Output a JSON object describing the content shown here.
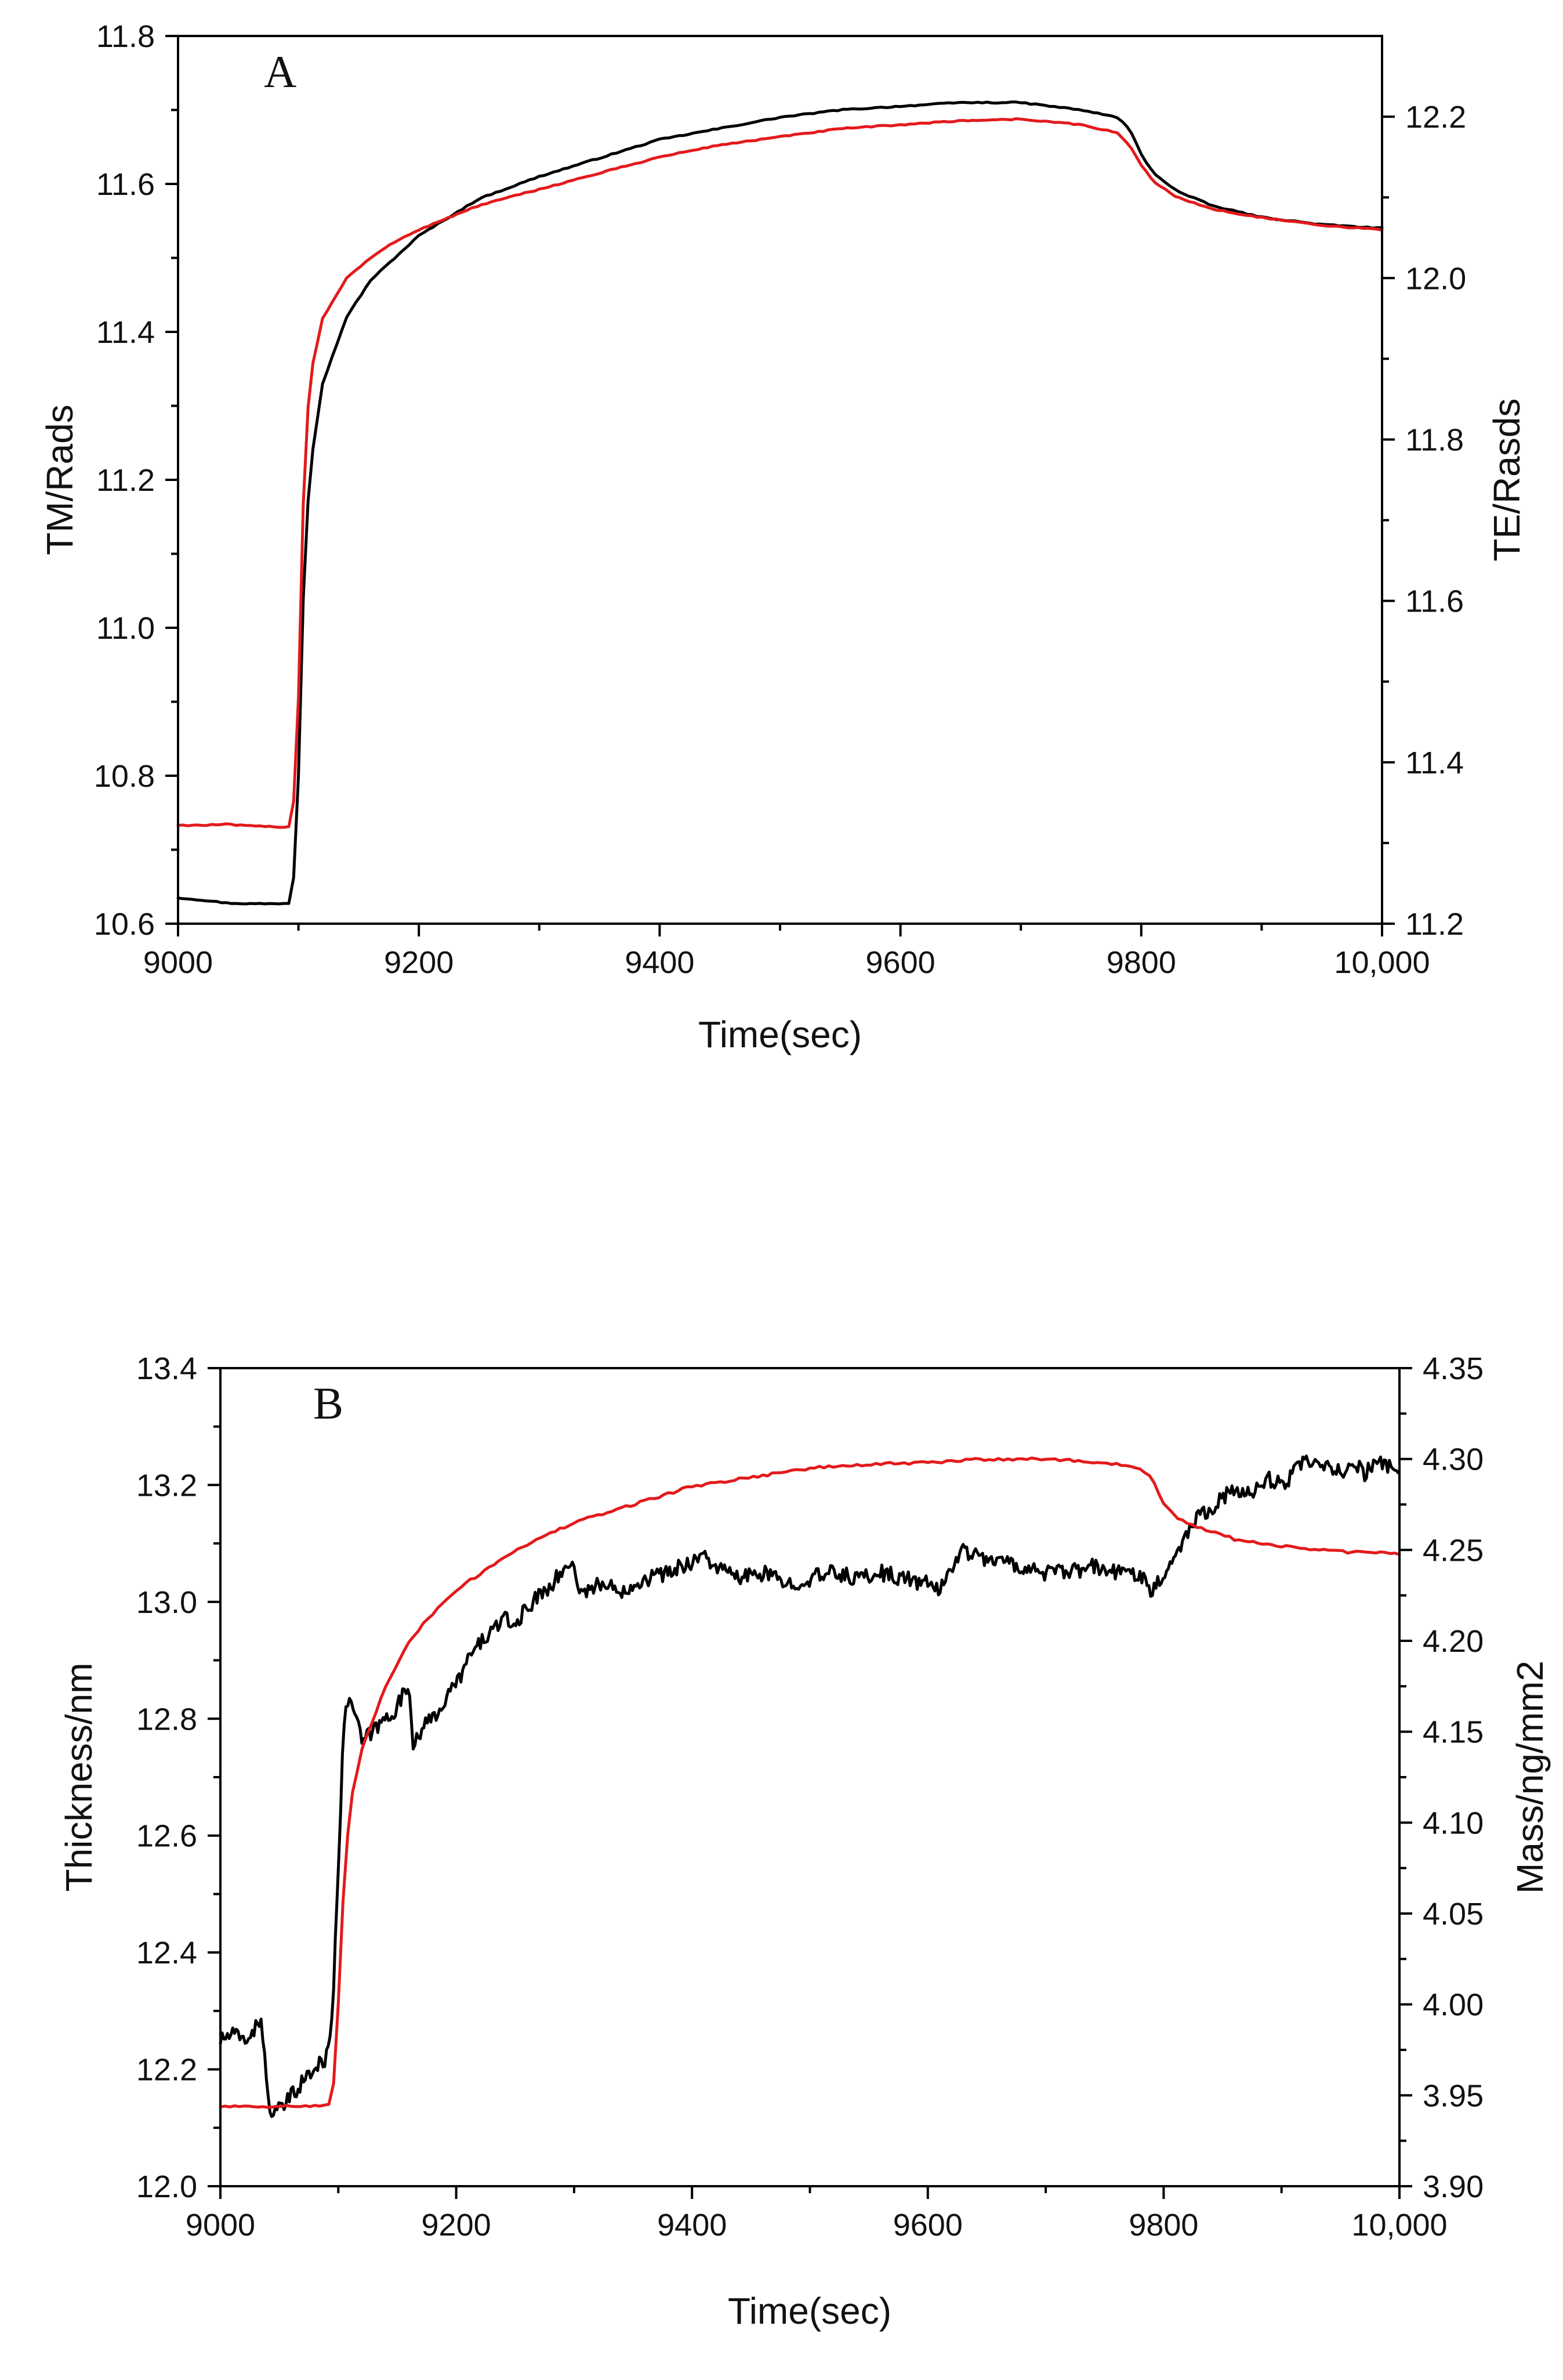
{
  "chart_data": [
    {
      "type": "line",
      "panel_label": "A",
      "title": "",
      "xlabel": "Time(sec)",
      "ylabel_left": "TM/Rads",
      "ylabel_right": "TE/Rasds",
      "xlim": [
        9000,
        10000
      ],
      "ylim_left": [
        10.6,
        11.8
      ],
      "ylim_right": [
        11.2,
        12.3
      ],
      "x_ticks": [
        9000,
        9200,
        9400,
        9600,
        9800,
        10000
      ],
      "x_tick_labels": [
        "9000",
        "9200",
        "9400",
        "9600",
        "9800",
        "10,000"
      ],
      "y_ticks_left": [
        10.6,
        10.8,
        11.0,
        11.2,
        11.4,
        11.6,
        11.8
      ],
      "y_tick_labels_left": [
        "10.6",
        "10.8",
        "11.0",
        "11.2",
        "11.4",
        "11.6",
        "11.8"
      ],
      "y_ticks_right": [
        11.2,
        11.4,
        11.6,
        11.8,
        12.0,
        12.2
      ],
      "y_tick_labels_right": [
        "11.2",
        "11.4",
        "11.6",
        "11.8",
        "12.0",
        "12.2"
      ],
      "grid": false,
      "series": [
        {
          "name": "TM",
          "axis": "left",
          "color": "#000000",
          "x": [
            9000,
            9020,
            9040,
            9060,
            9080,
            9095,
            9100,
            9105,
            9110,
            9120,
            9140,
            9160,
            9180,
            9200,
            9250,
            9300,
            9350,
            9400,
            9450,
            9500,
            9550,
            9600,
            9650,
            9700,
            9750,
            9780,
            9790,
            9800,
            9810,
            9830,
            9860,
            9900,
            9950,
            10000
          ],
          "y": [
            10.635,
            10.632,
            10.628,
            10.627,
            10.627,
            10.628,
            10.8,
            11.1,
            11.22,
            11.33,
            11.42,
            11.47,
            11.5,
            11.53,
            11.58,
            11.61,
            11.635,
            11.66,
            11.675,
            11.69,
            11.7,
            11.705,
            11.71,
            11.71,
            11.7,
            11.69,
            11.675,
            11.64,
            11.615,
            11.59,
            11.57,
            11.555,
            11.545,
            11.54
          ]
        },
        {
          "name": "TE",
          "axis": "right",
          "color": "#e31a1c",
          "x": [
            9000,
            9020,
            9040,
            9060,
            9080,
            9095,
            9100,
            9105,
            9110,
            9120,
            9140,
            9160,
            9180,
            9200,
            9250,
            9300,
            9350,
            9400,
            9450,
            9500,
            9550,
            9600,
            9650,
            9700,
            9750,
            9780,
            9790,
            9800,
            9810,
            9830,
            9860,
            9900,
            9950,
            10000
          ],
          "y": [
            11.322,
            11.322,
            11.323,
            11.321,
            11.32,
            11.32,
            11.48,
            11.78,
            11.88,
            11.95,
            12.0,
            12.025,
            12.045,
            12.06,
            12.09,
            12.11,
            12.13,
            12.15,
            12.165,
            12.175,
            12.185,
            12.19,
            12.195,
            12.197,
            12.19,
            12.18,
            12.165,
            12.14,
            12.12,
            12.1,
            12.085,
            12.075,
            12.065,
            12.06
          ]
        }
      ]
    },
    {
      "type": "line",
      "panel_label": "B",
      "title": "",
      "xlabel": "Time(sec)",
      "ylabel_left": "Thickness/nm",
      "ylabel_right": "Mass/ng/mm2",
      "xlim": [
        9000,
        10000
      ],
      "ylim_left": [
        12.0,
        13.4
      ],
      "ylim_right": [
        3.9,
        4.35
      ],
      "x_ticks": [
        9000,
        9200,
        9400,
        9600,
        9800,
        10000
      ],
      "x_tick_labels": [
        "9000",
        "9200",
        "9400",
        "9600",
        "9800",
        "10,000"
      ],
      "y_ticks_left": [
        12.0,
        12.2,
        12.4,
        12.6,
        12.8,
        13.0,
        13.2,
        13.4
      ],
      "y_tick_labels_left": [
        "12.0",
        "12.2",
        "12.4",
        "12.6",
        "12.8",
        "13.0",
        "13.2",
        "13.4"
      ],
      "y_ticks_right": [
        3.9,
        3.95,
        4.0,
        4.05,
        4.1,
        4.15,
        4.2,
        4.25,
        4.3,
        4.35
      ],
      "y_tick_labels_right": [
        "3.90",
        "3.95",
        "4.00",
        "4.05",
        "4.10",
        "4.15",
        "4.20",
        "4.25",
        "4.30",
        "4.35"
      ],
      "grid": false,
      "series": [
        {
          "name": "Thickness",
          "axis": "left",
          "color": "#000000",
          "x": [
            9000,
            9010,
            9020,
            9030,
            9035,
            9040,
            9045,
            9055,
            9070,
            9080,
            9090,
            9095,
            9100,
            9105,
            9110,
            9115,
            9120,
            9130,
            9140,
            9150,
            9160,
            9163,
            9170,
            9180,
            9190,
            9200,
            9210,
            9220,
            9230,
            9240,
            9250,
            9260,
            9270,
            9280,
            9290,
            9300,
            9305,
            9310,
            9320,
            9340,
            9360,
            9380,
            9400,
            9410,
            9420,
            9440,
            9460,
            9480,
            9500,
            9520,
            9540,
            9560,
            9580,
            9600,
            9610,
            9620,
            9630,
            9640,
            9660,
            9680,
            9700,
            9720,
            9740,
            9760,
            9780,
            9790,
            9795,
            9800,
            9810,
            9820,
            9830,
            9840,
            9850,
            9860,
            9870,
            9880,
            9890,
            9900,
            9910,
            9920,
            9930,
            9940,
            9950,
            9960,
            9970,
            9980,
            9990,
            10000
          ],
          "y": [
            12.25,
            12.26,
            12.25,
            12.27,
            12.29,
            12.15,
            12.12,
            12.14,
            12.18,
            12.2,
            12.22,
            12.3,
            12.55,
            12.8,
            12.84,
            12.8,
            12.76,
            12.78,
            12.8,
            12.82,
            12.86,
            12.76,
            12.78,
            12.8,
            12.83,
            12.86,
            12.9,
            12.93,
            12.95,
            12.97,
            12.96,
            12.99,
            13.01,
            13.03,
            13.05,
            13.07,
            13.01,
            13.02,
            13.03,
            13.02,
            13.04,
            13.05,
            13.07,
            13.08,
            13.06,
            13.04,
            13.05,
            13.03,
            13.04,
            13.05,
            13.04,
            13.05,
            13.04,
            13.03,
            13.02,
            13.06,
            13.09,
            13.08,
            13.07,
            13.06,
            13.05,
            13.05,
            13.06,
            13.05,
            13.05,
            13.02,
            13.03,
            13.05,
            13.08,
            13.12,
            13.15,
            13.16,
            13.18,
            13.19,
            13.18,
            13.2,
            13.21,
            13.2,
            13.22,
            13.24,
            13.23,
            13.23,
            13.22,
            13.24,
            13.22,
            13.24,
            13.23,
            13.23
          ]
        },
        {
          "name": "Mass",
          "axis": "right",
          "color": "#e31a1c",
          "x": [
            9000,
            9050,
            9090,
            9095,
            9100,
            9105,
            9110,
            9120,
            9140,
            9160,
            9180,
            9200,
            9250,
            9300,
            9350,
            9400,
            9450,
            9500,
            9550,
            9600,
            9650,
            9700,
            9750,
            9780,
            9790,
            9800,
            9810,
            9830,
            9860,
            9900,
            9950,
            10000
          ],
          "y": [
            3.944,
            3.944,
            3.944,
            3.945,
            4.0,
            4.07,
            4.11,
            4.14,
            4.175,
            4.2,
            4.215,
            4.228,
            4.25,
            4.265,
            4.275,
            4.285,
            4.29,
            4.295,
            4.297,
            4.298,
            4.3,
            4.3,
            4.298,
            4.295,
            4.29,
            4.275,
            4.268,
            4.262,
            4.256,
            4.252,
            4.249,
            4.248
          ]
        }
      ]
    }
  ]
}
